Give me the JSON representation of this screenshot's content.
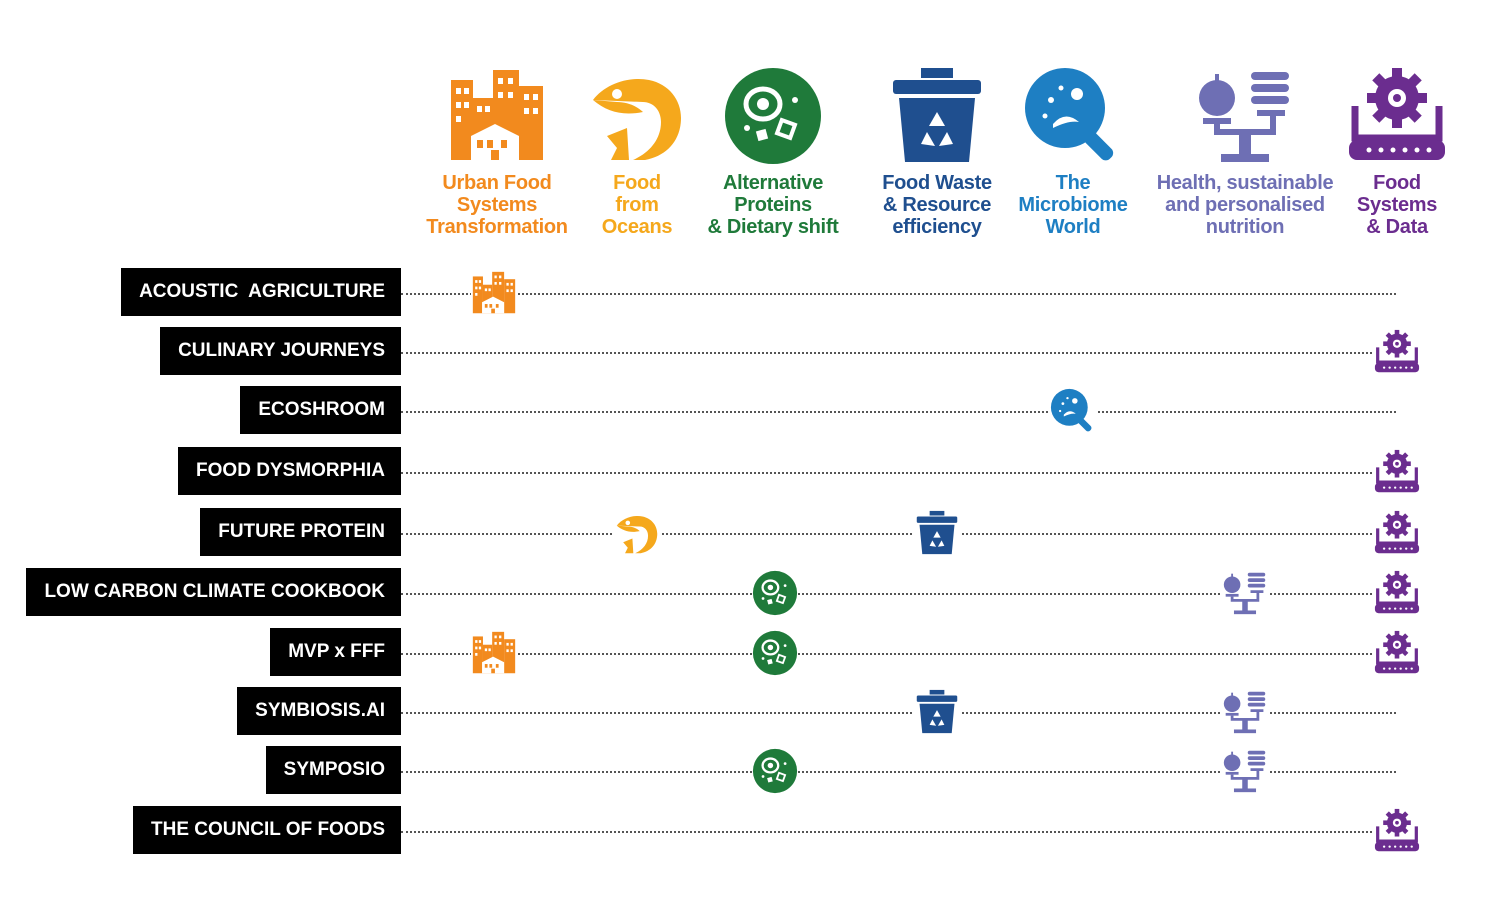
{
  "columns": [
    {
      "key": "urban",
      "title": "Urban Food\nSystems\nTransformation",
      "color": "#f28a1e",
      "icon": "city-buildings-icon"
    },
    {
      "key": "oceans",
      "title": "Food\nfrom\nOceans",
      "color": "#f5a81c",
      "icon": "fish-icon"
    },
    {
      "key": "proteins",
      "title": "Alternative\nProteins\n& Dietary shift",
      "color": "#1f7a3a",
      "icon": "cell-protein-icon"
    },
    {
      "key": "waste",
      "title": "Food Waste\n& Resource\nefficiency",
      "color": "#1f4f8f",
      "icon": "recycling-bin-icon"
    },
    {
      "key": "microbiome",
      "title": "The\nMicrobiome\nWorld",
      "color": "#1e7fc3",
      "icon": "microbe-magnifier-icon"
    },
    {
      "key": "health",
      "title": "Health, sustainable\nand personalised\nnutrition",
      "color": "#6e6fb4",
      "icon": "nutrition-scale-icon"
    },
    {
      "key": "data",
      "title": "Food\nSystems\n& Data",
      "color": "#6b2d8f",
      "icon": "data-gear-icon"
    }
  ],
  "rows": [
    {
      "label": "ACOUSTIC  AGRICULTURE",
      "themes": [
        "urban"
      ]
    },
    {
      "label": "CULINARY JOURNEYS",
      "themes": [
        "data"
      ]
    },
    {
      "label": "ECOSHROOM",
      "themes": [
        "microbiome"
      ]
    },
    {
      "label": "FOOD DYSMORPHIA",
      "themes": [
        "data"
      ]
    },
    {
      "label": "FUTURE PROTEIN",
      "themes": [
        "oceans",
        "waste",
        "data"
      ]
    },
    {
      "label": "LOW CARBON CLIMATE COOKBOOK",
      "themes": [
        "proteins",
        "health",
        "data"
      ]
    },
    {
      "label": "MVP x FFF",
      "themes": [
        "urban",
        "proteins",
        "data"
      ]
    },
    {
      "label": "SYMBIOSIS.AI",
      "themes": [
        "waste",
        "health"
      ]
    },
    {
      "label": "SYMPOSIO",
      "themes": [
        "proteins",
        "health"
      ]
    },
    {
      "label": "THE COUNCIL OF FOODS",
      "themes": [
        "data"
      ]
    }
  ]
}
